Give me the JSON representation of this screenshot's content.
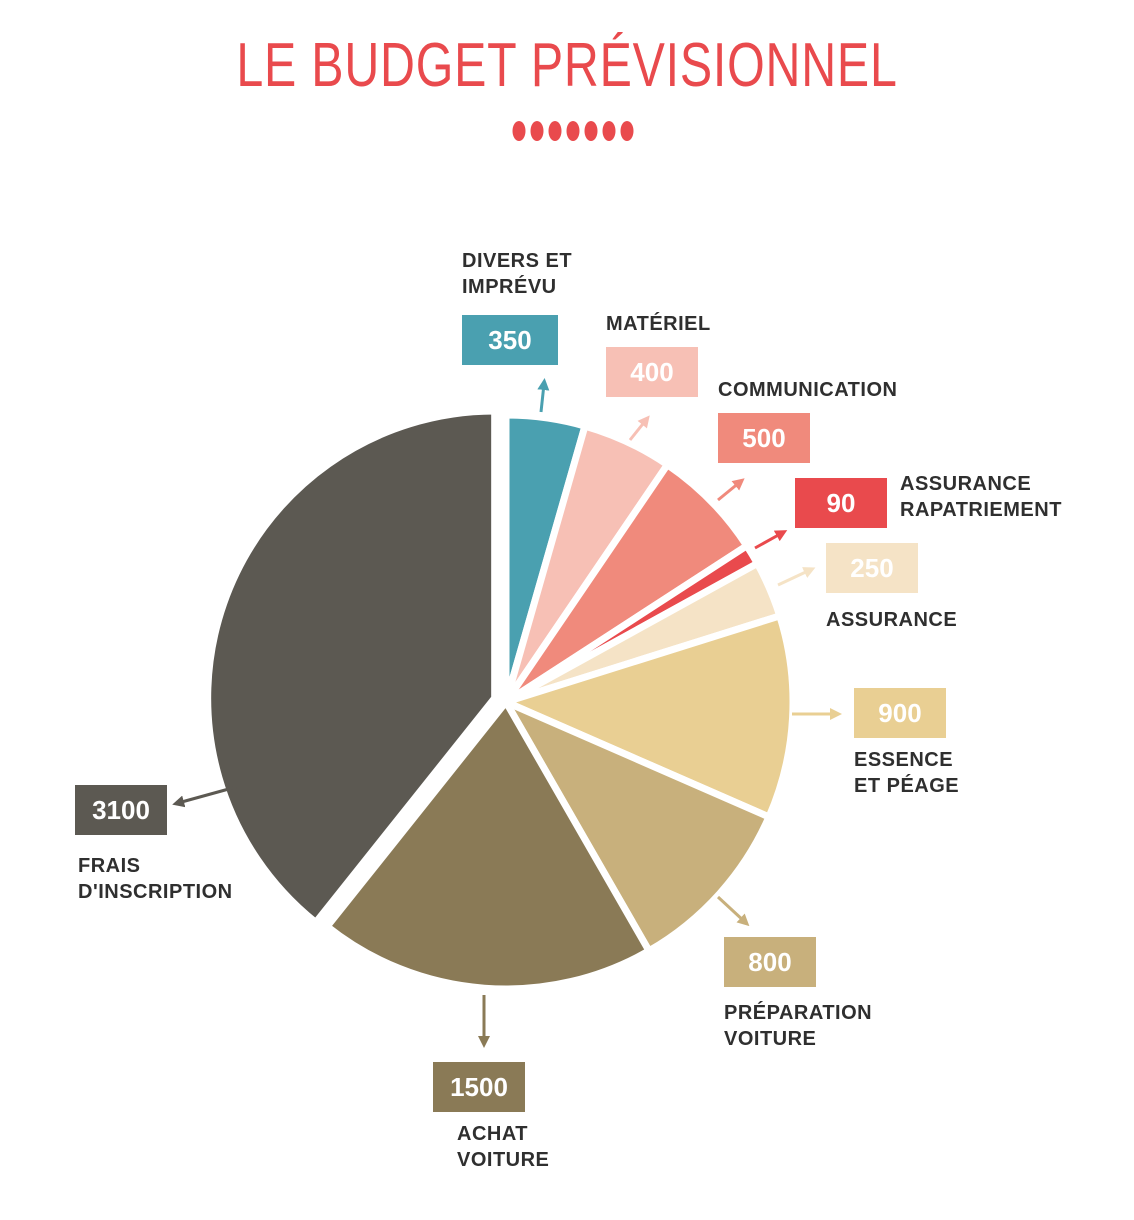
{
  "chart_data": {
    "type": "pie",
    "title": "LE BUDGET PRÉVISIONNEL",
    "slices": [
      {
        "label": [
          "DIVERS ET",
          "IMPRÉVU"
        ],
        "value": 350,
        "color": "#4aa0b0",
        "value_color": "#ffffff"
      },
      {
        "label": [
          "MATÉRIEL"
        ],
        "value": 400,
        "color": "#f7c0b5",
        "value_color": "#ffffff"
      },
      {
        "label": [
          "COMMUNICATION"
        ],
        "value": 500,
        "color": "#f08a7c",
        "value_color": "#ffffff"
      },
      {
        "label": [
          "ASSURANCE",
          "RAPATRIEMENT"
        ],
        "value": 90,
        "color": "#e94a4d",
        "value_color": "#ffffff"
      },
      {
        "label": [
          "ASSURANCE"
        ],
        "value": 250,
        "color": "#f5e3c6",
        "value_color": "#ffffff"
      },
      {
        "label": [
          "ESSENCE",
          "ET PÉAGE"
        ],
        "value": 900,
        "color": "#e9cf93",
        "value_color": "#ffffff"
      },
      {
        "label": [
          "PRÉPARATION",
          "VOITURE"
        ],
        "value": 800,
        "color": "#c8b07c",
        "value_color": "#ffffff"
      },
      {
        "label": [
          "ACHAT",
          "VOITURE"
        ],
        "value": 1500,
        "color": "#8a7a56",
        "value_color": "#ffffff"
      },
      {
        "label": [
          "FRAIS",
          "D'INSCRIPTION"
        ],
        "value": 3100,
        "color": "#5c5952",
        "value_color": "#ffffff"
      }
    ]
  }
}
